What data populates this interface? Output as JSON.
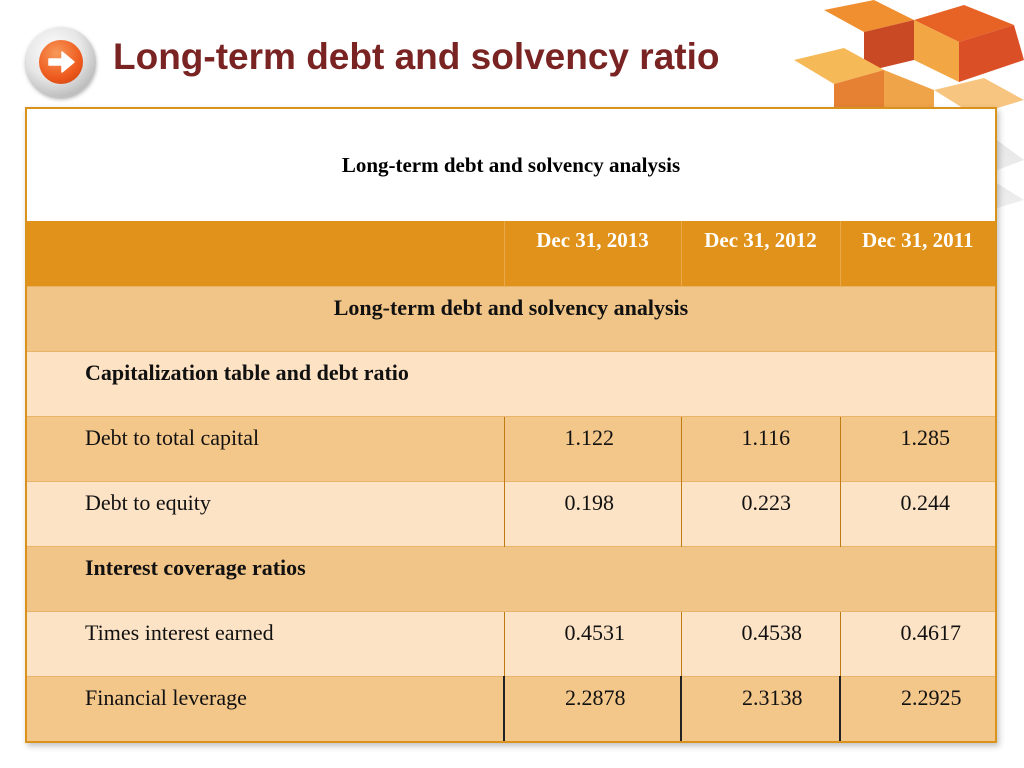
{
  "slide": {
    "title": "Long-term debt and solvency ratio"
  },
  "table": {
    "caption": "Long-term debt and solvency analysis",
    "columns": [
      "",
      "Dec 31, 2013",
      "Dec 31, 2012",
      "Dec 31, 2011"
    ],
    "section_header": "Long-term debt and solvency analysis",
    "groups": [
      {
        "title": "Capitalization table and debt ratio",
        "rows": [
          {
            "label": "Debt to total capital",
            "values": [
              "1.122",
              "1.116",
              "1.285"
            ]
          },
          {
            "label": "Debt to equity",
            "values": [
              "0.198",
              "0.223",
              "0.244"
            ]
          }
        ]
      },
      {
        "title": "Interest coverage ratios",
        "rows": [
          {
            "label": "Times interest earned",
            "values": [
              "0.4531",
              "0.4538",
              "0.4617"
            ]
          },
          {
            "label": "Financial leverage",
            "values": [
              "2.2878",
              "2.3138",
              "2.2925"
            ]
          }
        ]
      }
    ]
  },
  "colors": {
    "title": "#7a2323",
    "header_orange": "#e0921b",
    "row_dark": "#f3c68a",
    "row_light": "#fde3c5",
    "accent_arrow": "#ee5a1e"
  },
  "icons": {
    "nav": "right-arrow-icon"
  }
}
